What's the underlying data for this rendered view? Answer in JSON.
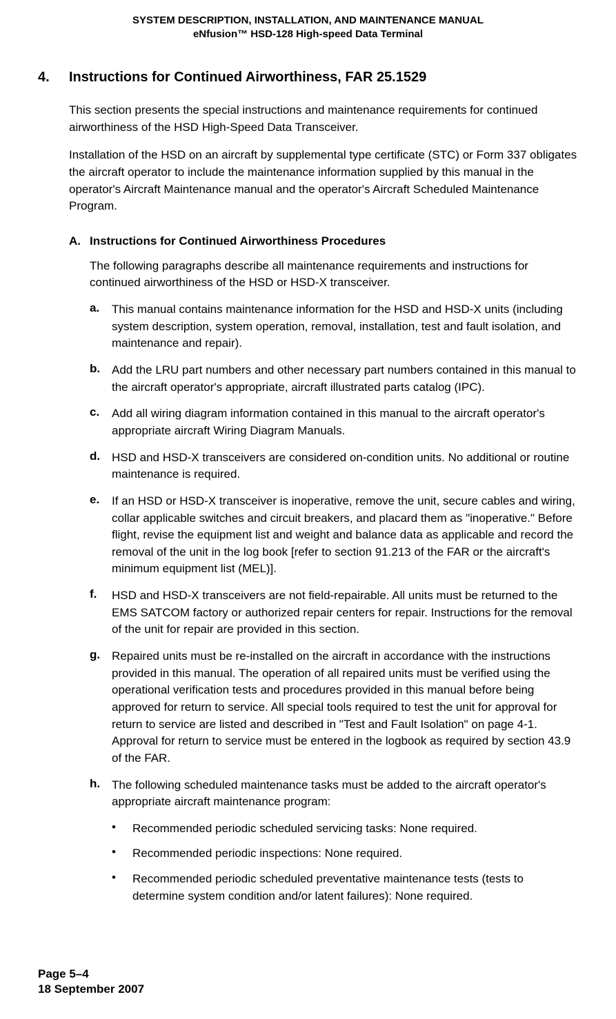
{
  "header": {
    "line1": "SYSTEM DESCRIPTION, INSTALLATION, AND MAINTENANCE MANUAL",
    "line2": "eNfusion™ HSD-128 High-speed Data Terminal"
  },
  "section": {
    "number": "4.",
    "title": "Instructions for Continued Airworthiness, FAR 25.1529"
  },
  "intro": {
    "para1": "This section presents the special instructions and maintenance requirements for continued airworthiness of the HSD High-Speed Data Transceiver.",
    "para2": "Installation of the HSD on an aircraft by supplemental type certificate (STC) or Form 337 obligates the aircraft operator to include the maintenance information supplied by this manual in the operator's Aircraft Maintenance manual and the operator's Aircraft Scheduled Maintenance Program."
  },
  "subsection": {
    "letter": "A.",
    "title": "Instructions for Continued Airworthiness Procedures",
    "intro": "The following paragraphs describe all maintenance requirements and instructions for continued airworthiness of the HSD or HSD-X transceiver."
  },
  "items": {
    "a": {
      "marker": "a.",
      "text": "This manual contains maintenance information for the HSD and HSD-X units (including system description, system operation, removal, installation, test and fault isolation, and maintenance and repair)."
    },
    "b": {
      "marker": "b.",
      "text": "Add the LRU part numbers and other necessary part numbers contained in this manual to the aircraft operator's appropriate, aircraft illustrated parts catalog (IPC)."
    },
    "c": {
      "marker": "c.",
      "text": "Add all wiring diagram information contained in this manual to the aircraft operator's appropriate aircraft Wiring Diagram Manuals."
    },
    "d": {
      "marker": "d.",
      "text": "HSD and HSD-X transceivers are considered on-condition units. No additional or routine maintenance is required."
    },
    "e": {
      "marker": "e.",
      "text": "If an HSD or HSD-X transceiver is inoperative, remove the unit, secure cables and wiring, collar applicable switches and circuit breakers, and placard them as \"inoperative.\" Before flight, revise the equipment list and weight and balance data as applicable and record the removal of the unit in the log book [refer to section 91.213 of the FAR or the aircraft's minimum equipment list (MEL)]."
    },
    "f": {
      "marker": "f.",
      "text": "HSD and HSD-X transceivers are not field-repairable. All units must be returned to the EMS SATCOM factory or authorized repair centers for repair. Instructions for the removal of the unit for repair are provided in this section."
    },
    "g": {
      "marker": "g.",
      "text": "Repaired units must be re-installed on the aircraft in accordance with the instructions provided in this manual. The operation of all repaired units must be verified using the operational verification tests and procedures provided in this manual before being approved for return to service. All special tools required to test the unit for approval for return to service are listed and described in \"Test and Fault Isolation\" on page 4-1. Approval for return to service must be entered in the logbook as required by section 43.9 of the FAR."
    },
    "h": {
      "marker": "h.",
      "text": "The following scheduled maintenance tasks must be added to the aircraft operator's appropriate aircraft maintenance program:"
    }
  },
  "bullets": {
    "b1": "Recommended periodic scheduled servicing tasks: None required.",
    "b2": "Recommended periodic inspections: None required.",
    "b3": "Recommended periodic scheduled preventative maintenance tests (tests to determine system condition and/or latent failures): None required."
  },
  "footer": {
    "page": "Page 5–4",
    "date": "18 September 2007"
  }
}
